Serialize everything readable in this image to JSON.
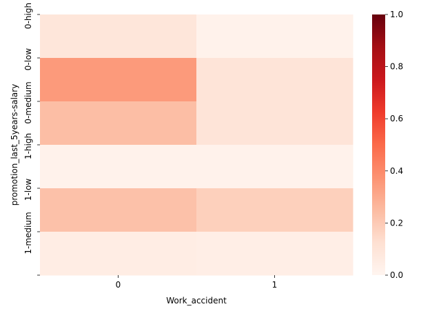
{
  "chart_data": {
    "type": "heatmap",
    "title": "",
    "xlabel": "Work_accident",
    "ylabel": "promotion_last_5years-salary",
    "x_categories": [
      "0",
      "1"
    ],
    "y_categories": [
      "0-high",
      "0-low",
      "0-medium",
      "1-high",
      "1-low",
      "1-medium"
    ],
    "values": [
      [
        0.09,
        0.02
      ],
      [
        0.35,
        0.1
      ],
      [
        0.24,
        0.1
      ],
      [
        0.02,
        0.02
      ],
      [
        0.23,
        0.18
      ],
      [
        0.05,
        0.04
      ]
    ],
    "colorbar": {
      "range": [
        0.0,
        1.0
      ],
      "ticks": [
        0.0,
        0.2,
        0.4,
        0.6,
        0.8,
        1.0
      ],
      "tick_labels": [
        "0.0",
        "0.2",
        "0.4",
        "0.6",
        "0.8",
        "1.0"
      ],
      "colormap": "Reds"
    },
    "grid": false
  }
}
